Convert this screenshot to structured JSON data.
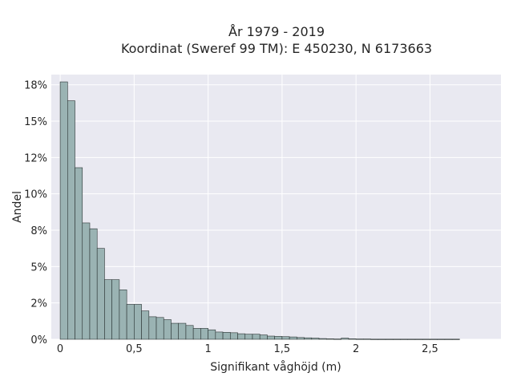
{
  "chart_data": {
    "type": "bar",
    "title": [
      "År 1979 - 2019",
      "Koordinat (Sweref 99 TM): E 450230, N 6173663"
    ],
    "xlabel": "Signifikant våghöjd (m)",
    "ylabel": "Andel",
    "xlim": [
      -0.06,
      2.98
    ],
    "ylim": [
      0,
      0.182
    ],
    "grid": true,
    "bin_width": 0.05,
    "bin_starts": [
      0,
      0.05,
      0.1,
      0.15,
      0.2,
      0.25,
      0.3,
      0.35,
      0.4,
      0.45,
      0.5,
      0.55,
      0.6,
      0.65,
      0.7,
      0.75,
      0.8,
      0.85,
      0.9,
      0.95,
      1.0,
      1.05,
      1.1,
      1.15,
      1.2,
      1.25,
      1.3,
      1.35,
      1.4,
      1.45,
      1.5,
      1.55,
      1.6,
      1.65,
      1.7,
      1.75,
      1.8,
      1.85,
      1.9,
      1.95,
      2.0,
      2.05,
      2.1,
      2.15,
      2.2,
      2.25,
      2.3,
      2.35,
      2.4,
      2.45,
      2.5,
      2.55,
      2.6,
      2.65
    ],
    "values": [
      0.177,
      0.164,
      0.118,
      0.08,
      0.076,
      0.0625,
      0.041,
      0.041,
      0.034,
      0.024,
      0.024,
      0.0195,
      0.0155,
      0.015,
      0.0135,
      0.011,
      0.011,
      0.0095,
      0.0075,
      0.0075,
      0.0065,
      0.005,
      0.0048,
      0.0045,
      0.0038,
      0.0035,
      0.0035,
      0.003,
      0.0022,
      0.002,
      0.0018,
      0.0016,
      0.0012,
      0.001,
      0.0008,
      0.0005,
      0.0003,
      0.0002,
      0.0008,
      0.0003,
      0.0002,
      0.0002,
      0.0001,
      0.0001,
      0.0001,
      0.0001,
      0.0001,
      0.0001,
      0.0001,
      0.0001,
      0.0001,
      0.0001,
      0.0001,
      0.0001
    ],
    "x_ticks": [
      0,
      0.5,
      1,
      1.5,
      2,
      2.5
    ],
    "x_tick_labels": [
      "0",
      "0,5",
      "1",
      "1,5",
      "2",
      "2,5"
    ],
    "y_ticks": [
      0,
      0.025,
      0.05,
      0.075,
      0.1,
      0.125,
      0.15,
      0.175
    ],
    "y_tick_labels": [
      "0%",
      "2%",
      "5%",
      "8%",
      "10%",
      "12%",
      "15%",
      "18%"
    ],
    "colors": {
      "bar_fill": "#9ab3b3",
      "bar_stroke": "#2a3333",
      "plot_background": "#e9e9f1",
      "grid": "#ffffff"
    }
  }
}
